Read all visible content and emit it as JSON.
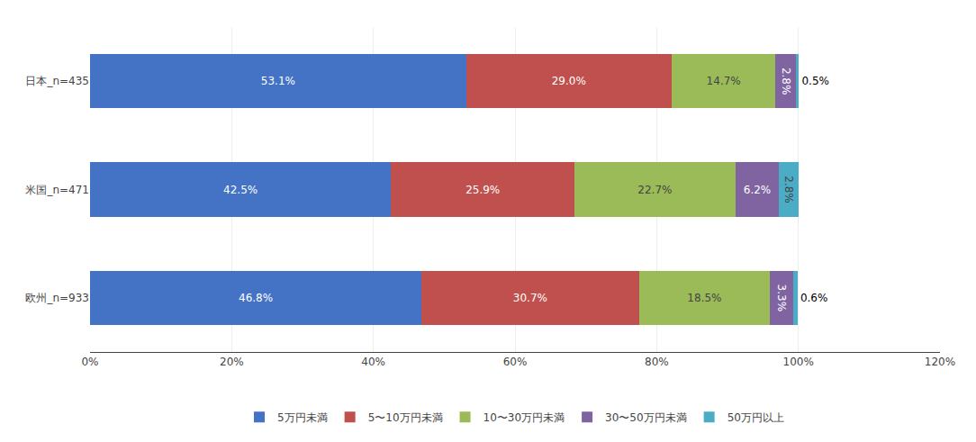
{
  "chart_data": {
    "type": "bar",
    "orientation": "horizontal",
    "stacked": true,
    "categories": [
      "欧州_n=933",
      "米国_n=471",
      "日本_n=435"
    ],
    "series": [
      {
        "name": "5万円未満",
        "color": "#4472C4",
        "values": [
          46.8,
          42.5,
          53.1
        ],
        "value_labels": [
          "46.8%",
          "42.5%",
          "53.1%"
        ]
      },
      {
        "name": "5〜10万円未満",
        "color": "#C0504D",
        "values": [
          30.7,
          25.9,
          29.0
        ],
        "value_labels": [
          "30.7%",
          "25.9%",
          "29.0%"
        ]
      },
      {
        "name": "10〜30万円未満",
        "color": "#9BBB59",
        "values": [
          18.5,
          22.7,
          14.7
        ],
        "value_labels": [
          "18.5%",
          "22.7%",
          "14.7%"
        ]
      },
      {
        "name": "30〜50万円未満",
        "color": "#8064A2",
        "values": [
          3.3,
          6.2,
          2.8
        ],
        "value_labels": [
          "3.3%",
          "6.2%",
          "2.8%"
        ]
      },
      {
        "name": "50万円以上",
        "color": "#4BACC6",
        "values": [
          0.6,
          2.8,
          0.5
        ],
        "value_labels": [
          "0.6%",
          "2.8%",
          "0.5%"
        ]
      }
    ],
    "xlim": [
      0,
      120
    ],
    "xticks": [
      {
        "value": 0,
        "label": "0%"
      },
      {
        "value": 20,
        "label": "20%"
      },
      {
        "value": 40,
        "label": "40%"
      },
      {
        "value": 60,
        "label": "60%"
      },
      {
        "value": 80,
        "label": "80%"
      },
      {
        "value": 100,
        "label": "100%"
      },
      {
        "value": 120,
        "label": "120%"
      }
    ],
    "grid": true,
    "data_labels": true,
    "legend": "bottom"
  }
}
